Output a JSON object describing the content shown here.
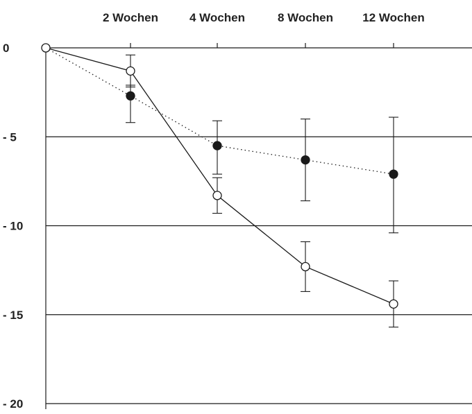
{
  "chart_data": {
    "type": "line",
    "x_categories": [
      "0",
      "2 Wochen",
      "4 Wochen",
      "8 Wochen",
      "12 Wochen"
    ],
    "x_tick_labels": [
      "2 Wochen",
      "4 Wochen",
      "8 Wochen",
      "12 Wochen"
    ],
    "y_tick_labels": [
      "0",
      "- 5",
      "- 10",
      "- 15",
      "- 20"
    ],
    "y_ticks": [
      0,
      -5,
      -10,
      -15,
      -20
    ],
    "ylim": [
      -20,
      0
    ],
    "grid": "horizontal",
    "series": [
      {
        "marker": "open-circle",
        "line_style": "solid",
        "values": [
          0,
          -1.3,
          -8.3,
          -12.3,
          -14.4
        ],
        "err_low": [
          0,
          -2.2,
          -9.3,
          -13.7,
          -15.7
        ],
        "err_high": [
          0,
          -0.4,
          -7.3,
          -10.9,
          -13.1
        ]
      },
      {
        "marker": "filled-circle",
        "line_style": "dotted",
        "values": [
          0,
          -2.7,
          -5.5,
          -6.3,
          -7.1
        ],
        "err_low": [
          0,
          -4.2,
          -7.1,
          -8.6,
          -10.4
        ],
        "err_high": [
          0,
          -2.1,
          -4.1,
          -4.0,
          -3.9
        ]
      }
    ],
    "colors": {
      "line": "#1a1a1a",
      "grid": "#1a1a1a",
      "open_fill": "#ffffff",
      "filled_fill": "#1a1a1a"
    }
  }
}
